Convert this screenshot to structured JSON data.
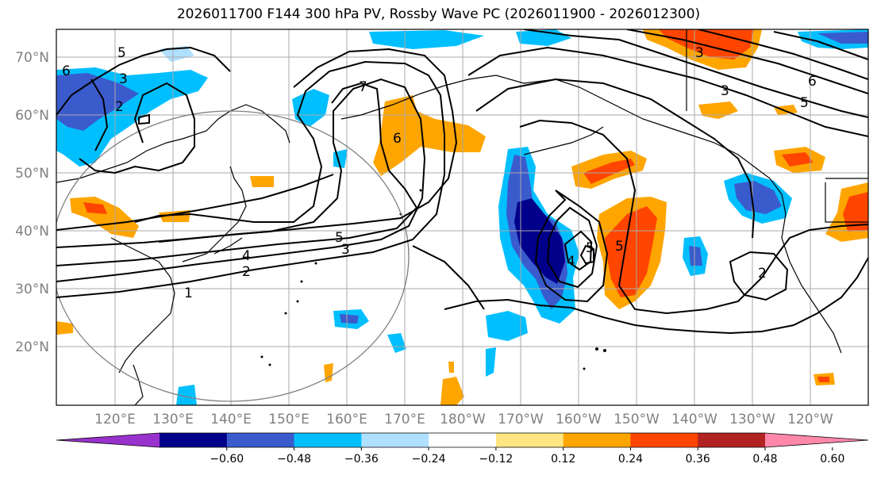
{
  "title": "2026011700 F144 300 hPa PV, Rossby Wave PC (2026011900 - 2026012300)",
  "axes": {
    "lat_labels": [
      "70°N",
      "60°N",
      "50°N",
      "40°N",
      "30°N",
      "20°N"
    ],
    "lon_labels": [
      "120°E",
      "130°E",
      "140°E",
      "150°E",
      "160°E",
      "170°E",
      "180°W",
      "170°W",
      "160°W",
      "150°W",
      "140°W",
      "130°W",
      "120°W"
    ]
  },
  "colorbar": {
    "ticks": [
      "−0.60",
      "−0.48",
      "−0.36",
      "−0.24",
      "−0.12",
      "0.12",
      "0.24",
      "0.36",
      "0.48",
      "0.60"
    ],
    "colors": [
      "#9932cc",
      "#00008b",
      "#3a5bcc",
      "#00bfff",
      "#b0e0ff",
      "#ffffff",
      "#ffe680",
      "#ffa500",
      "#ff4500",
      "#b22222",
      "#ff88aa"
    ]
  },
  "contour_labels": [
    "6",
    "5",
    "2",
    "3",
    "7",
    "6",
    "5",
    "4",
    "3",
    "2",
    "1",
    "4",
    "5",
    "5",
    "3",
    "6",
    "5",
    "3",
    "2"
  ]
}
